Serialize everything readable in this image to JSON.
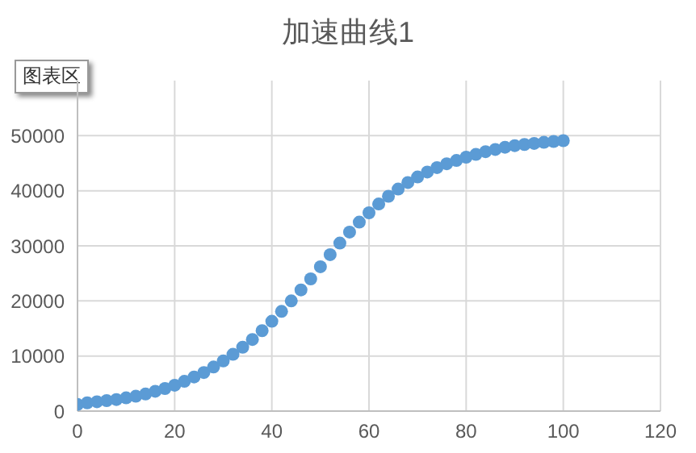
{
  "chart_data": {
    "type": "scatter",
    "title": "加速曲线1",
    "annotations": [
      "图表区"
    ],
    "x": [
      0,
      2,
      4,
      6,
      8,
      10,
      12,
      14,
      16,
      18,
      20,
      22,
      24,
      26,
      28,
      30,
      32,
      34,
      36,
      38,
      40,
      42,
      44,
      46,
      48,
      50,
      52,
      54,
      56,
      58,
      60,
      62,
      64,
      66,
      68,
      70,
      72,
      74,
      76,
      78,
      80,
      82,
      84,
      86,
      88,
      90,
      92,
      94,
      96,
      98,
      100
    ],
    "series": [
      {
        "color": "#5b9bd5",
        "values": [
          1200,
          1500,
          1700,
          1900,
          2100,
          2400,
          2700,
          3100,
          3600,
          4100,
          4700,
          5400,
          6200,
          7000,
          8000,
          9100,
          10300,
          11600,
          13000,
          14600,
          16300,
          18100,
          20000,
          22000,
          24000,
          26200,
          28400,
          30500,
          32500,
          34300,
          36000,
          37600,
          39000,
          40300,
          41500,
          42500,
          43400,
          44200,
          44900,
          45500,
          46100,
          46600,
          47100,
          47500,
          47900,
          48200,
          48400,
          48600,
          48800,
          48950,
          49100
        ]
      }
    ],
    "xlim": [
      0,
      120
    ],
    "xticks": [
      0,
      20,
      40,
      60,
      80,
      100,
      120
    ],
    "ylim": [
      0,
      60000
    ],
    "yticks": [
      0,
      10000,
      20000,
      30000,
      40000,
      50000
    ],
    "grid": true,
    "marker": "circle",
    "legend": false
  }
}
